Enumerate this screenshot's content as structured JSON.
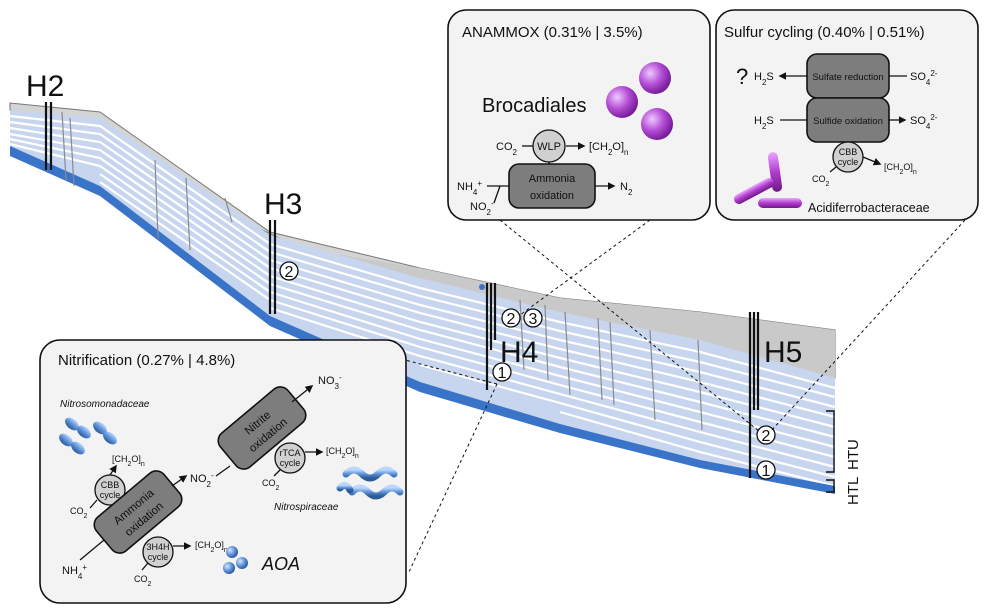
{
  "wells": {
    "h2": "H2",
    "h3": "H3",
    "h4": "H4",
    "h5": "H5"
  },
  "markers": {
    "h3_2": "2",
    "h4_2": "2",
    "h4_3": "3",
    "h4_1": "1",
    "h5_2": "2",
    "h5_1": "1"
  },
  "units": {
    "htu": "HTU",
    "htl": "HTL"
  },
  "anammox": {
    "title": "ANAMMOX (0.31% | 3.5%)",
    "taxon": "Brocadiales",
    "wlp": "WLP",
    "co2": "CO",
    "co2_sub": "2",
    "ch2o": "[CH",
    "ch2o_2": "2",
    "ch2o_3": "O]",
    "ch2o_n": "n",
    "process_line1": "Ammonia",
    "process_line2": "oxidation",
    "nh4": "NH",
    "nh4_sub": "4",
    "nh4_sup": "+",
    "no2": "NO",
    "no2_sub": "2",
    "no2_sup": "-",
    "n2": "N",
    "n2_sub": "2"
  },
  "sulfur": {
    "title": "Sulfur cycling (0.40% | 0.51%)",
    "question": "?",
    "h2s_a": "H",
    "h2s_a_sub": "2",
    "h2s_a_s": "S",
    "sulfate_reduction": "Sulfate reduction",
    "so4": "SO",
    "so4_sub": "4",
    "so4_sup": "2-",
    "sulfide_oxidation": "Sulfide oxidation",
    "cbb_line1": "CBB",
    "cbb_line2": "cycle",
    "co2": "CO",
    "co2_sub": "2",
    "ch2o": "[CH",
    "ch2o_2": "2",
    "ch2o_3": "O]",
    "ch2o_n": "n",
    "taxon": "Acidiferrobacteraceae"
  },
  "nitrification": {
    "title": "Nitrification (0.27% | 4.8%)",
    "taxon_nitrosomonadaceae": "Nitrosomonadaceae",
    "taxon_nitrospiraceae": "Nitrospiraceae",
    "aoa": "AOA",
    "ammonia_ox_line1": "Ammonia",
    "ammonia_ox_line2": "oxidation",
    "nitrite_ox_line1": "Nitrite",
    "nitrite_ox_line2": "oxidation",
    "cbb_line1": "CBB",
    "cbb_line2": "cycle",
    "rtca_line1": "rTCA",
    "rtca_line2": "cycle",
    "h3h4_line1": "3H4H",
    "h3h4_line2": "cycle",
    "nh4": "NH",
    "nh4_sub": "4",
    "nh4_sup": "+",
    "no2": "NO",
    "no2_sub": "2",
    "no2_sup": "-",
    "no3": "NO",
    "no3_sub": "3",
    "no3_sup": "-",
    "co2": "CO",
    "co2_sub": "2",
    "ch2o": "[CH",
    "ch2o_2": "2",
    "ch2o_3": "O]",
    "ch2o_n": "n"
  },
  "colors": {
    "layer_light": "#c7d6ee",
    "layer_white": "#ffffff",
    "layer_base": "#3a74c9",
    "overburden": "#d4d4d4",
    "panel_fill": "#f3f3f3",
    "process_box": "#7d7d7d",
    "anammox_purple": "#b54fd6",
    "sulfur_purple": "#b13ccd",
    "nitrif_blue": "#5d92d6"
  }
}
